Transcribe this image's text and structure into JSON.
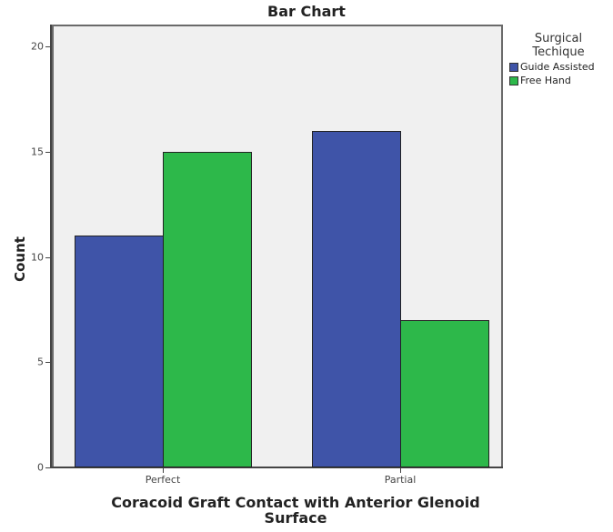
{
  "chart_data": {
    "type": "bar",
    "title": "Bar Chart",
    "xlabel": "Coracoid Graft Contact with Anterior Glenoid Surface",
    "ylabel": "Count",
    "categories": [
      "Perfect",
      "Partial"
    ],
    "series": [
      {
        "name": "Guide Assisted",
        "color": "#3f54a8",
        "values": [
          11,
          16
        ]
      },
      {
        "name": "Free Hand",
        "color": "#2db84a",
        "values": [
          15,
          7
        ]
      }
    ],
    "ylim": [
      0,
      21
    ],
    "yticks": [
      0,
      5,
      10,
      15,
      20
    ],
    "legend": {
      "title": "Surgical Techique",
      "position": "right"
    },
    "grid": false
  },
  "labels": {
    "title": "Bar Chart",
    "xtitle_line1": "Coracoid Graft Contact with Anterior Glenoid",
    "xtitle_line2": "Surface",
    "ytitle": "Count",
    "legend_title_line1": "Surgical",
    "legend_title_line2": "Techique"
  }
}
